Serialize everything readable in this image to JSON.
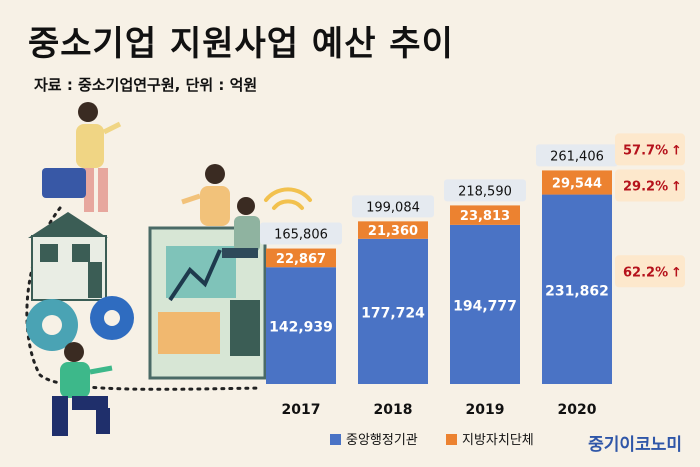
{
  "title": "중소기업 지원사업 예산 추이",
  "source": "자료 : 중소기업연구원, 단위 : 억원",
  "brand": "중기이코노미",
  "colors": {
    "central": "#4a73c5",
    "local": "#ec8230",
    "background": "#f7f1e6",
    "callout_bg": "#fde8cc",
    "callout_text": "#b5121b",
    "total_bg": "#e5eaf0"
  },
  "chart_data": {
    "type": "bar",
    "stacked": true,
    "categories": [
      "2017",
      "2018",
      "2019",
      "2020"
    ],
    "series": [
      {
        "name": "중앙행정기관",
        "values": [
          142939,
          177724,
          194777,
          231862
        ]
      },
      {
        "name": "지방자치단체",
        "values": [
          22867,
          21360,
          23813,
          29544
        ]
      }
    ],
    "totals": [
      165806,
      199084,
      218590,
      261406
    ],
    "value_labels": {
      "central": [
        "142,939",
        "177,724",
        "194,777",
        "231,862"
      ],
      "local": [
        "22,867",
        "21,360",
        "23,813",
        "29,544"
      ],
      "totals": [
        "165,806",
        "199,084",
        "218,590",
        "261,406"
      ]
    },
    "callouts": [
      {
        "text": "57.7%",
        "arrow": "↑",
        "target": "total"
      },
      {
        "text": "29.2%",
        "arrow": "↑",
        "target": "local"
      },
      {
        "text": "62.2%",
        "arrow": "↑",
        "target": "central"
      }
    ],
    "legend": [
      "중앙행정기관",
      "지방자치단체"
    ],
    "legend_position": "bottom-right",
    "grid": false
  }
}
